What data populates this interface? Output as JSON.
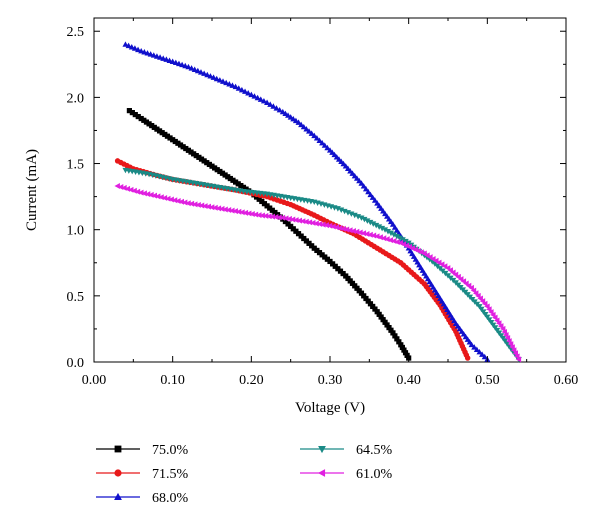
{
  "chart_data": {
    "type": "scatter",
    "title": "",
    "xlabel": "Voltage (V)",
    "ylabel": "Current (mA)",
    "xlim": [
      0.0,
      0.6
    ],
    "ylim": [
      0.0,
      2.6
    ],
    "x_ticks": [
      "0.00",
      "0.10",
      "0.20",
      "0.30",
      "0.40",
      "0.50",
      "0.60"
    ],
    "y_ticks": [
      "0.0",
      "0.5",
      "1.0",
      "1.5",
      "2.0",
      "2.5"
    ],
    "grid": false,
    "legend_placement": "below",
    "series": [
      {
        "name": "75.0%",
        "color": "#000000",
        "marker": "square",
        "points": [
          [
            0.045,
            1.9
          ],
          [
            0.06,
            1.84
          ],
          [
            0.08,
            1.76
          ],
          [
            0.1,
            1.68
          ],
          [
            0.12,
            1.6
          ],
          [
            0.14,
            1.52
          ],
          [
            0.16,
            1.44
          ],
          [
            0.18,
            1.36
          ],
          [
            0.2,
            1.28
          ],
          [
            0.22,
            1.18
          ],
          [
            0.24,
            1.08
          ],
          [
            0.26,
            0.97
          ],
          [
            0.28,
            0.86
          ],
          [
            0.3,
            0.76
          ],
          [
            0.32,
            0.65
          ],
          [
            0.34,
            0.52
          ],
          [
            0.36,
            0.38
          ],
          [
            0.38,
            0.22
          ],
          [
            0.39,
            0.13
          ],
          [
            0.4,
            0.03
          ]
        ]
      },
      {
        "name": "71.5%",
        "color": "#e8191a",
        "marker": "circle",
        "points": [
          [
            0.03,
            1.52
          ],
          [
            0.05,
            1.46
          ],
          [
            0.08,
            1.41
          ],
          [
            0.1,
            1.38
          ],
          [
            0.14,
            1.34
          ],
          [
            0.18,
            1.3
          ],
          [
            0.22,
            1.25
          ],
          [
            0.25,
            1.19
          ],
          [
            0.28,
            1.11
          ],
          [
            0.3,
            1.05
          ],
          [
            0.33,
            0.97
          ],
          [
            0.36,
            0.86
          ],
          [
            0.39,
            0.75
          ],
          [
            0.42,
            0.59
          ],
          [
            0.44,
            0.43
          ],
          [
            0.46,
            0.23
          ],
          [
            0.475,
            0.03
          ]
        ]
      },
      {
        "name": "68.0%",
        "color": "#1010cc",
        "marker": "triangle-up",
        "points": [
          [
            0.04,
            2.4
          ],
          [
            0.06,
            2.35
          ],
          [
            0.08,
            2.31
          ],
          [
            0.1,
            2.27
          ],
          [
            0.12,
            2.23
          ],
          [
            0.14,
            2.18
          ],
          [
            0.16,
            2.13
          ],
          [
            0.18,
            2.08
          ],
          [
            0.2,
            2.02
          ],
          [
            0.22,
            1.96
          ],
          [
            0.24,
            1.89
          ],
          [
            0.26,
            1.81
          ],
          [
            0.28,
            1.71
          ],
          [
            0.3,
            1.6
          ],
          [
            0.32,
            1.48
          ],
          [
            0.34,
            1.35
          ],
          [
            0.36,
            1.2
          ],
          [
            0.38,
            1.04
          ],
          [
            0.4,
            0.86
          ],
          [
            0.42,
            0.67
          ],
          [
            0.44,
            0.48
          ],
          [
            0.46,
            0.29
          ],
          [
            0.48,
            0.13
          ],
          [
            0.5,
            0.02
          ]
        ]
      },
      {
        "name": "64.5%",
        "color": "#1a8a86",
        "marker": "triangle-down",
        "points": [
          [
            0.04,
            1.45
          ],
          [
            0.07,
            1.42
          ],
          [
            0.1,
            1.38
          ],
          [
            0.13,
            1.35
          ],
          [
            0.16,
            1.32
          ],
          [
            0.19,
            1.29
          ],
          [
            0.22,
            1.27
          ],
          [
            0.25,
            1.24
          ],
          [
            0.28,
            1.21
          ],
          [
            0.31,
            1.16
          ],
          [
            0.34,
            1.09
          ],
          [
            0.37,
            1.0
          ],
          [
            0.4,
            0.9
          ],
          [
            0.43,
            0.76
          ],
          [
            0.46,
            0.6
          ],
          [
            0.49,
            0.42
          ],
          [
            0.51,
            0.26
          ],
          [
            0.53,
            0.1
          ],
          [
            0.54,
            0.02
          ]
        ]
      },
      {
        "name": "61.0%",
        "color": "#e020e0",
        "marker": "triangle-left",
        "points": [
          [
            0.03,
            1.33
          ],
          [
            0.06,
            1.28
          ],
          [
            0.09,
            1.24
          ],
          [
            0.12,
            1.2
          ],
          [
            0.15,
            1.17
          ],
          [
            0.18,
            1.14
          ],
          [
            0.21,
            1.11
          ],
          [
            0.24,
            1.09
          ],
          [
            0.27,
            1.06
          ],
          [
            0.3,
            1.03
          ],
          [
            0.33,
            0.99
          ],
          [
            0.36,
            0.95
          ],
          [
            0.39,
            0.9
          ],
          [
            0.42,
            0.82
          ],
          [
            0.45,
            0.71
          ],
          [
            0.48,
            0.56
          ],
          [
            0.5,
            0.42
          ],
          [
            0.52,
            0.25
          ],
          [
            0.54,
            0.02
          ]
        ]
      }
    ]
  }
}
